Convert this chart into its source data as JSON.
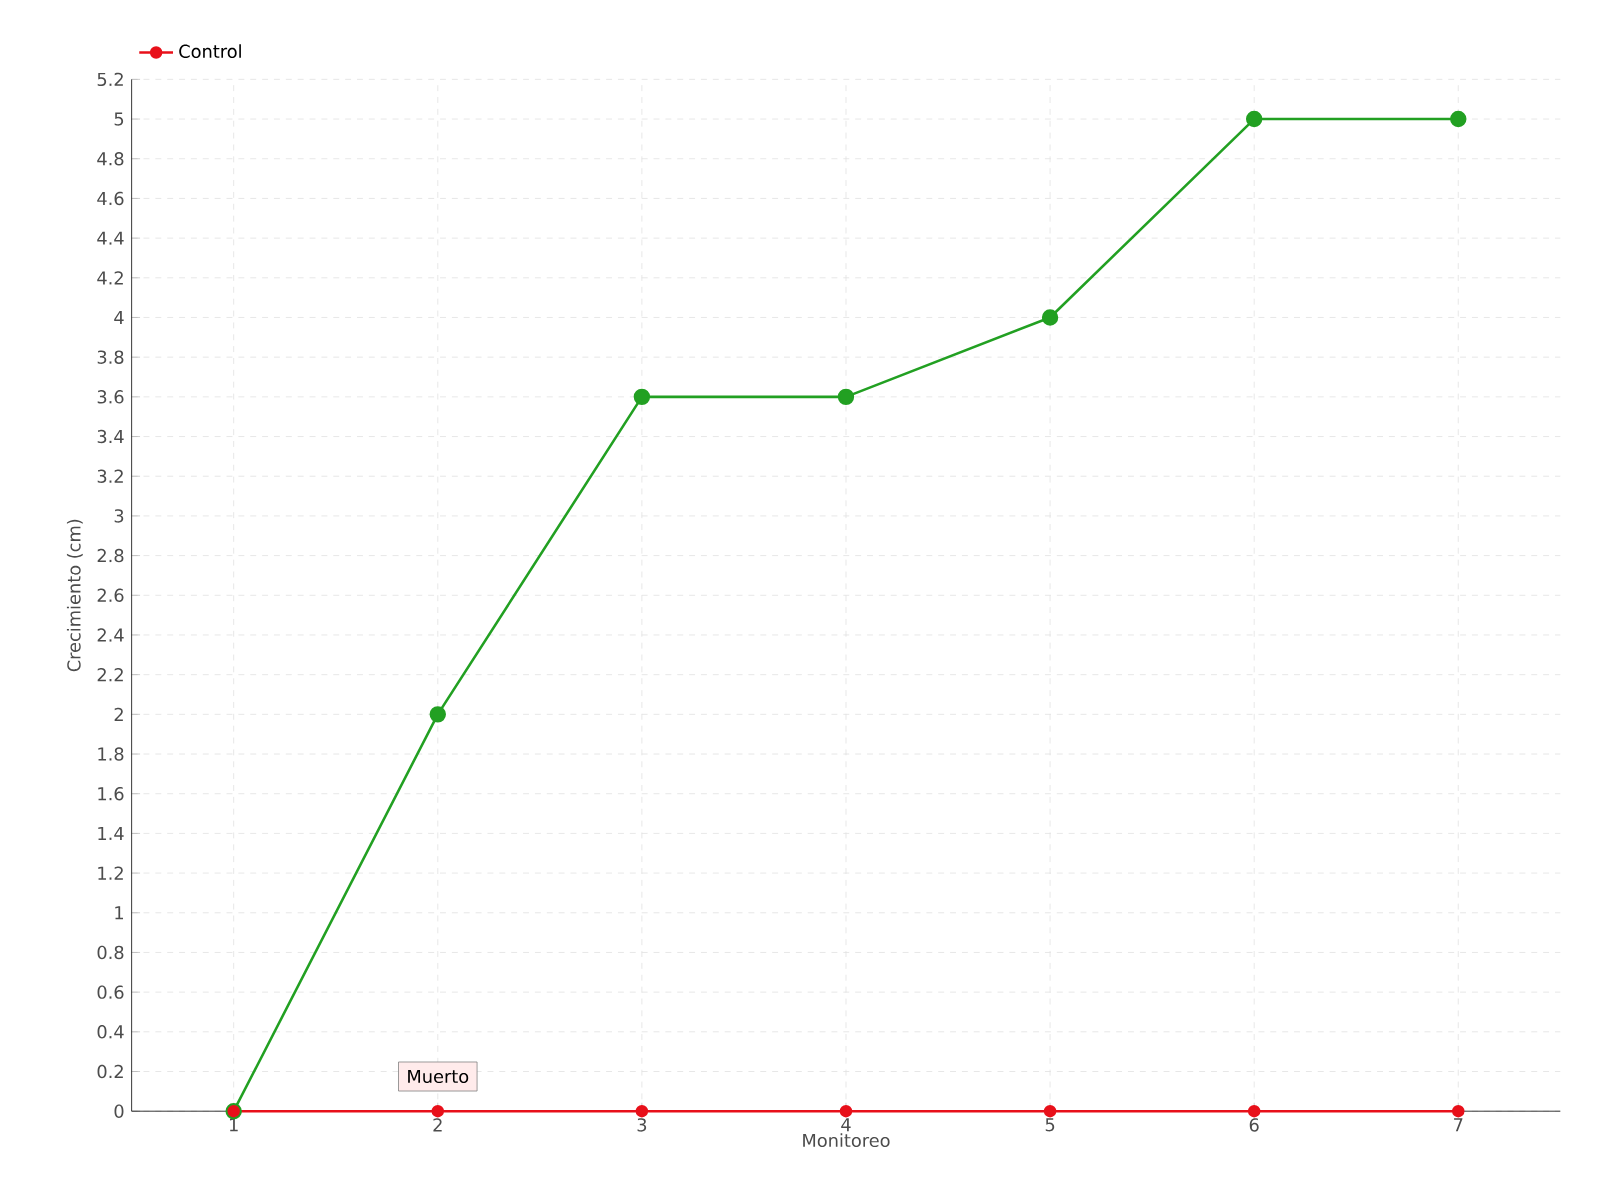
{
  "chart_data": {
    "type": "line",
    "xlabel": "Monitoreo",
    "ylabel": "Crecimiento (cm)",
    "categories": [
      "1",
      "2",
      "3",
      "4",
      "5",
      "6",
      "7"
    ],
    "series": [
      {
        "color": "#22a022",
        "values": [
          0,
          2,
          3.6,
          3.6,
          4,
          5,
          5
        ]
      },
      {
        "name": "Control",
        "color": "#e8101a",
        "values": [
          0,
          0,
          0,
          0,
          0,
          0,
          0
        ]
      }
    ],
    "ylim": [
      0,
      5.2
    ],
    "yticks": [
      0,
      0.2,
      0.4,
      0.6,
      0.8,
      1,
      1.2,
      1.4,
      1.6,
      1.8,
      2,
      2.2,
      2.4,
      2.6,
      2.8,
      3,
      3.2,
      3.4,
      3.6,
      3.8,
      4,
      4.2,
      4.4,
      4.6,
      4.8,
      5,
      5.2
    ],
    "annotations": [
      {
        "text": "Muerto",
        "x": "2",
        "y": 0
      }
    ],
    "grid": true,
    "legend": "top left",
    "marker": "circle",
    "line_style": "solid"
  }
}
